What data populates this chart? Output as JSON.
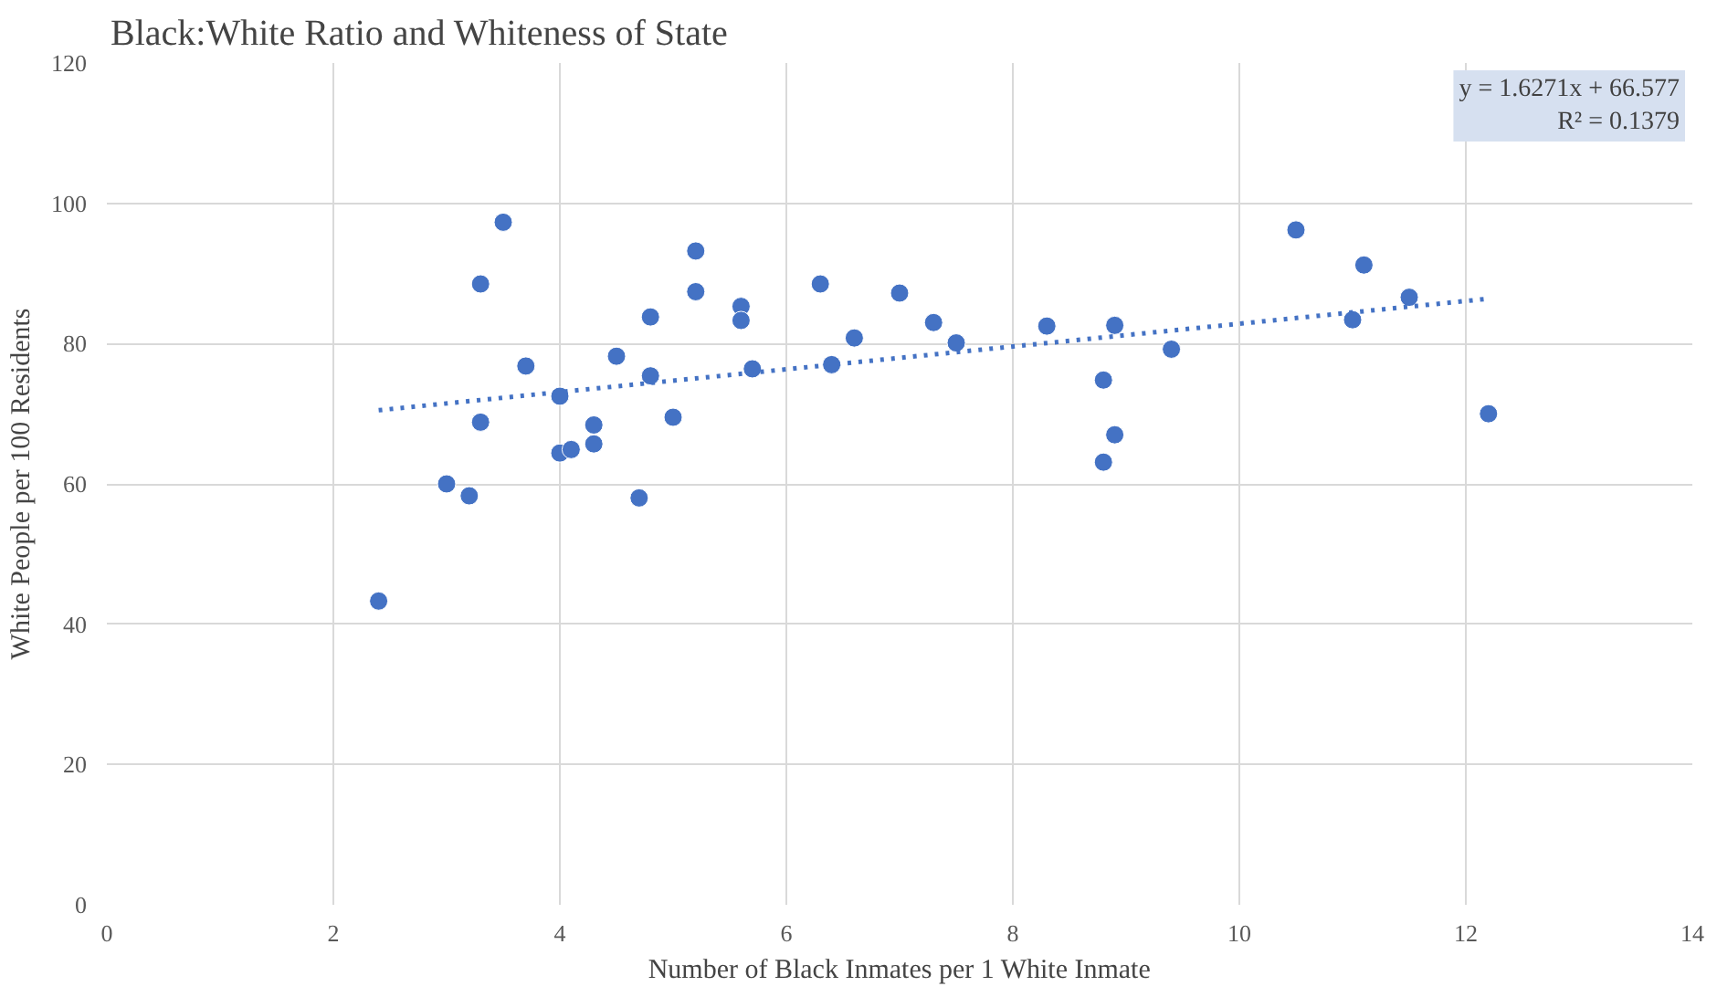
{
  "chart_data": {
    "type": "scatter",
    "title": "Black:White Ratio and Whiteness of State",
    "xlabel": "Number of Black Inmates per 1 White Inmate",
    "ylabel": "White People per 100 Residents",
    "xlim": [
      0,
      14
    ],
    "ylim": [
      0,
      120
    ],
    "xticks": [
      0,
      2,
      4,
      6,
      8,
      10,
      12,
      14
    ],
    "yticks": [
      0,
      20,
      40,
      60,
      80,
      100,
      120
    ],
    "grid": true,
    "marker": "circle",
    "annotations": [
      "y = 1.6271x + 66.577",
      "R² = 0.1379"
    ],
    "series": [
      {
        "color": "#4472c4",
        "x": [
          2.4,
          3.0,
          3.2,
          3.3,
          3.3,
          3.5,
          3.7,
          4.0,
          4.0,
          4.1,
          4.3,
          4.3,
          4.5,
          4.7,
          4.8,
          4.8,
          5.0,
          5.2,
          5.2,
          5.6,
          5.6,
          5.7,
          6.3,
          6.4,
          6.6,
          7.0,
          7.3,
          7.5,
          8.3,
          8.8,
          8.8,
          8.9,
          8.9,
          9.4,
          10.5,
          11.0,
          11.1,
          11.5,
          12.2
        ],
        "values": [
          43.3,
          60,
          58.3,
          88.5,
          68.8,
          97.3,
          76.8,
          72.5,
          64.4,
          64.9,
          68.4,
          65.7,
          78.2,
          58,
          83.8,
          75.4,
          69.5,
          93.2,
          87.4,
          85.3,
          83.3,
          76.4,
          88.5,
          77,
          80.8,
          87.2,
          83,
          80.1,
          82.5,
          74.8,
          63.1,
          82.6,
          67,
          79.2,
          96.2,
          83.4,
          91.2,
          86.6,
          70
        ]
      },
      {
        "type": "line",
        "marker": "none",
        "color": "#4472c4",
        "line_style": "dotted",
        "x": [
          2.4,
          12.2
        ],
        "values": [
          70.5,
          86.4
        ]
      }
    ]
  }
}
